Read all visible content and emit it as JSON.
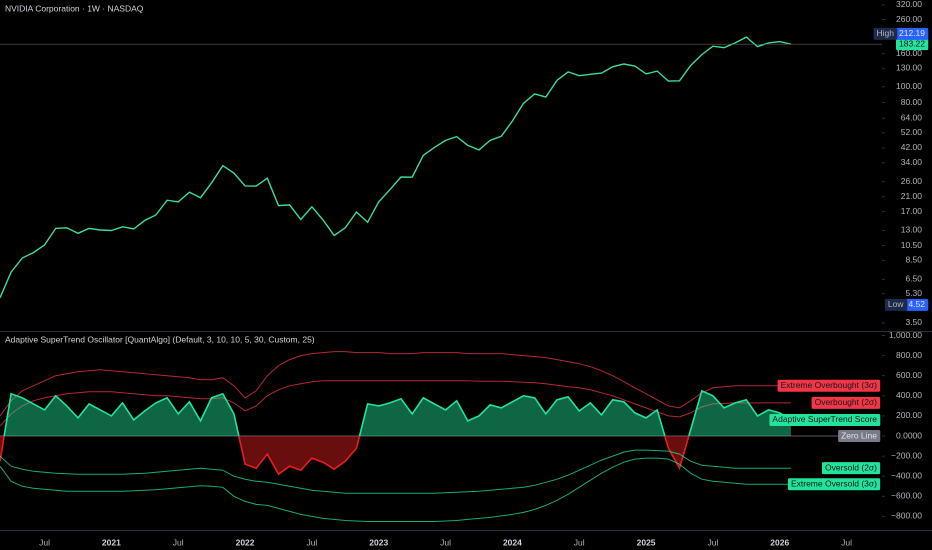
{
  "chart_data": [
    {
      "type": "line",
      "title": "NVIDIA Corporation · 1W · NASDAQ",
      "scale": "log",
      "color": "#3ddc97",
      "x": [
        "2020-03",
        "2020-04",
        "2020-05",
        "2020-06",
        "2020-07",
        "2020-08",
        "2020-09",
        "2020-10",
        "2020-11",
        "2020-12",
        "2021-01",
        "2021-02",
        "2021-03",
        "2021-04",
        "2021-05",
        "2021-06",
        "2021-07",
        "2021-08",
        "2021-09",
        "2021-10",
        "2021-11",
        "2021-12",
        "2022-01",
        "2022-02",
        "2022-03",
        "2022-04",
        "2022-05",
        "2022-06",
        "2022-07",
        "2022-08",
        "2022-09",
        "2022-10",
        "2022-11",
        "2022-12",
        "2023-01",
        "2023-02",
        "2023-03",
        "2023-04",
        "2023-05",
        "2023-06",
        "2023-07",
        "2023-08",
        "2023-09",
        "2023-10",
        "2023-11",
        "2023-12",
        "2024-01",
        "2024-02",
        "2024-03",
        "2024-04",
        "2024-05",
        "2024-06",
        "2024-07",
        "2024-08",
        "2024-09",
        "2024-10",
        "2024-11",
        "2024-12",
        "2025-01",
        "2025-02",
        "2025-03",
        "2025-04",
        "2025-05",
        "2025-06",
        "2025-07",
        "2025-08",
        "2025-09",
        "2025-10",
        "2025-11",
        "2025-12",
        "2026-01",
        "2026-02"
      ],
      "values": [
        5.0,
        7.2,
        8.8,
        9.5,
        10.6,
        13.4,
        13.5,
        12.5,
        13.4,
        13.1,
        13.0,
        13.7,
        13.3,
        15.0,
        16.2,
        20.0,
        19.5,
        22.4,
        20.7,
        25.6,
        32.6,
        29.4,
        24.5,
        24.4,
        27.3,
        18.5,
        18.7,
        15.2,
        18.2,
        15.1,
        12.1,
        13.5,
        16.9,
        14.6,
        19.5,
        23.2,
        27.8,
        27.7,
        37.8,
        42.3,
        46.7,
        49.3,
        43.5,
        40.8,
        46.7,
        49.5,
        61.5,
        79.1,
        90.4,
        86.4,
        109.6,
        123.5,
        117.0,
        119.4,
        121.4,
        132.8,
        138.3,
        134.3,
        120.1,
        124.9,
        108.4,
        108.9,
        135.1,
        158.0,
        177.9,
        174.2,
        186.6,
        202.5,
        177.0,
        186.5,
        190.0,
        183.22
      ],
      "xlim": [
        "2020-03",
        "2026-10"
      ],
      "ylim": [
        3.12,
        343
      ],
      "yticks": [
        {
          "value": 320,
          "label": "320.00"
        },
        {
          "value": 260,
          "label": "260.00"
        },
        {
          "value": 160,
          "label": "160.00"
        },
        {
          "value": 130,
          "label": "130.00"
        },
        {
          "value": 100,
          "label": "100.00"
        },
        {
          "value": 80,
          "label": "80.00"
        },
        {
          "value": 64,
          "label": "64.00"
        },
        {
          "value": 52,
          "label": "52.00"
        },
        {
          "value": 42,
          "label": "42.00"
        },
        {
          "value": 34,
          "label": "34.00"
        },
        {
          "value": 26,
          "label": "26.00"
        },
        {
          "value": 21,
          "label": "21.00"
        },
        {
          "value": 17,
          "label": "17.00"
        },
        {
          "value": 13,
          "label": "13.00"
        },
        {
          "value": 10.5,
          "label": "10.50"
        },
        {
          "value": 8.5,
          "label": "8.50"
        },
        {
          "value": 6.5,
          "label": "6.50"
        },
        {
          "value": 5.3,
          "label": "5.30"
        },
        {
          "value": 3.5,
          "label": "3.50"
        }
      ],
      "markers": [
        {
          "label": "High",
          "value": 212.19,
          "color": "#2962ff"
        },
        {
          "label": "Low",
          "value": 4.52,
          "color": "#2962ff"
        }
      ],
      "last": 183.22,
      "last_color": "#22e39a",
      "grid": false
    },
    {
      "type": "oscillator",
      "title": "Adaptive SuperTrend Oscillator [QuantAlgo] (Default, 3, 10, 10, 5, 30, Custom, 25)",
      "x": [
        "2020-03",
        "2020-04",
        "2020-05",
        "2020-06",
        "2020-07",
        "2020-08",
        "2020-09",
        "2020-10",
        "2020-11",
        "2020-12",
        "2021-01",
        "2021-02",
        "2021-03",
        "2021-04",
        "2021-05",
        "2021-06",
        "2021-07",
        "2021-08",
        "2021-09",
        "2021-10",
        "2021-11",
        "2021-12",
        "2022-01",
        "2022-02",
        "2022-03",
        "2022-04",
        "2022-05",
        "2022-06",
        "2022-07",
        "2022-08",
        "2022-09",
        "2022-10",
        "2022-11",
        "2022-12",
        "2023-01",
        "2023-02",
        "2023-03",
        "2023-04",
        "2023-05",
        "2023-06",
        "2023-07",
        "2023-08",
        "2023-09",
        "2023-10",
        "2023-11",
        "2023-12",
        "2024-01",
        "2024-02",
        "2024-03",
        "2024-04",
        "2024-05",
        "2024-06",
        "2024-07",
        "2024-08",
        "2024-09",
        "2024-10",
        "2024-11",
        "2024-12",
        "2025-01",
        "2025-02",
        "2025-03",
        "2025-04",
        "2025-05",
        "2025-06",
        "2025-07",
        "2025-08",
        "2025-09",
        "2025-10",
        "2025-11",
        "2025-12",
        "2026-01",
        "2026-02"
      ],
      "series": [
        {
          "name": "Extreme Overbought (3σ)",
          "color": "#f23645",
          "values": [
            200,
            350,
            450,
            500,
            550,
            600,
            620,
            640,
            650,
            660,
            650,
            640,
            630,
            620,
            610,
            600,
            590,
            580,
            560,
            560,
            580,
            500,
            380,
            450,
            600,
            700,
            760,
            800,
            820,
            830,
            840,
            840,
            830,
            830,
            830,
            820,
            820,
            820,
            830,
            830,
            830,
            830,
            820,
            820,
            820,
            820,
            810,
            800,
            790,
            780,
            760,
            740,
            720,
            690,
            650,
            600,
            540,
            480,
            420,
            360,
            300,
            280,
            350,
            430,
            480,
            490,
            500,
            500,
            500,
            500,
            500,
            500
          ]
        },
        {
          "name": "Overbought (2σ)",
          "color": "#f23645",
          "values": [
            100,
            220,
            300,
            350,
            380,
            400,
            420,
            430,
            440,
            440,
            440,
            430,
            420,
            410,
            400,
            400,
            390,
            380,
            370,
            370,
            380,
            330,
            250,
            300,
            400,
            460,
            500,
            520,
            540,
            550,
            550,
            550,
            550,
            550,
            550,
            550,
            550,
            550,
            550,
            550,
            550,
            550,
            550,
            545,
            545,
            545,
            540,
            535,
            530,
            520,
            505,
            490,
            480,
            460,
            430,
            400,
            360,
            320,
            280,
            240,
            200,
            190,
            230,
            290,
            320,
            325,
            330,
            330,
            330,
            330,
            330,
            330
          ]
        },
        {
          "name": "Adaptive SuperTrend Score",
          "color": "#22e39a",
          "negative_color": "#e81e1e",
          "fill": true,
          "values": [
            -250,
            420,
            380,
            320,
            260,
            400,
            300,
            180,
            320,
            260,
            200,
            330,
            160,
            250,
            330,
            380,
            220,
            340,
            150,
            380,
            420,
            220,
            -280,
            -320,
            -180,
            -380,
            -300,
            -340,
            -220,
            -260,
            -330,
            -250,
            -120,
            320,
            300,
            330,
            370,
            220,
            380,
            320,
            260,
            350,
            150,
            200,
            310,
            280,
            340,
            400,
            380,
            220,
            360,
            390,
            250,
            330,
            210,
            360,
            340,
            230,
            180,
            260,
            -120,
            -320,
            60,
            450,
            400,
            280,
            330,
            360,
            200,
            260,
            230,
            160
          ]
        },
        {
          "name": "Oversold (2σ)",
          "color": "#22e39a",
          "values": [
            -200,
            -300,
            -330,
            -350,
            -360,
            -370,
            -375,
            -380,
            -380,
            -380,
            -380,
            -380,
            -375,
            -370,
            -360,
            -350,
            -340,
            -330,
            -320,
            -330,
            -340,
            -400,
            -430,
            -450,
            -460,
            -480,
            -500,
            -520,
            -540,
            -550,
            -560,
            -570,
            -570,
            -570,
            -570,
            -570,
            -570,
            -570,
            -570,
            -570,
            -565,
            -560,
            -555,
            -550,
            -540,
            -530,
            -520,
            -510,
            -490,
            -460,
            -430,
            -390,
            -340,
            -290,
            -240,
            -200,
            -160,
            -140,
            -140,
            -145,
            -150,
            -180,
            -250,
            -290,
            -300,
            -310,
            -320,
            -320,
            -320,
            -320,
            -320,
            -320
          ]
        },
        {
          "name": "Extreme Oversold (3σ)",
          "color": "#22e39a",
          "values": [
            -300,
            -450,
            -500,
            -520,
            -530,
            -540,
            -550,
            -550,
            -550,
            -550,
            -550,
            -550,
            -545,
            -540,
            -535,
            -525,
            -515,
            -505,
            -495,
            -500,
            -510,
            -600,
            -650,
            -680,
            -690,
            -720,
            -750,
            -780,
            -800,
            -820,
            -830,
            -840,
            -845,
            -850,
            -850,
            -850,
            -850,
            -850,
            -850,
            -850,
            -845,
            -840,
            -830,
            -820,
            -810,
            -795,
            -780,
            -760,
            -730,
            -690,
            -640,
            -580,
            -510,
            -440,
            -370,
            -310,
            -260,
            -230,
            -220,
            -220,
            -230,
            -280,
            -370,
            -430,
            -450,
            -460,
            -470,
            -480,
            -480,
            -480,
            -480,
            -480
          ]
        }
      ],
      "hlines": [
        {
          "name": "Zero Line",
          "value": 0,
          "color": "#787b86"
        }
      ],
      "xlim": [
        "2020-03",
        "2026-10"
      ],
      "ylim": [
        -935,
        1025
      ],
      "yticks": [
        {
          "value": 1000,
          "label": "1,000.00"
        },
        {
          "value": 800,
          "label": "800.00"
        },
        {
          "value": 600,
          "label": "600.00"
        },
        {
          "value": 400,
          "label": "400.00"
        },
        {
          "value": 200,
          "label": "200.00"
        },
        {
          "value": 0,
          "label": "0.0000"
        },
        {
          "value": -200,
          "label": "−200.00"
        },
        {
          "value": -400,
          "label": "−400.00"
        },
        {
          "value": -600,
          "label": "−600.00"
        },
        {
          "value": -800,
          "label": "−800.00"
        }
      ],
      "xticks": [
        {
          "value": "2020-07",
          "label": "Jul"
        },
        {
          "value": "2021-01",
          "label": "2021"
        },
        {
          "value": "2021-07",
          "label": "Jul"
        },
        {
          "value": "2022-01",
          "label": "2022"
        },
        {
          "value": "2022-07",
          "label": "Jul"
        },
        {
          "value": "2023-01",
          "label": "2023"
        },
        {
          "value": "2023-07",
          "label": "Jul"
        },
        {
          "value": "2024-01",
          "label": "2024"
        },
        {
          "value": "2024-07",
          "label": "Jul"
        },
        {
          "value": "2025-01",
          "label": "2025"
        },
        {
          "value": "2025-07",
          "label": "Jul"
        },
        {
          "value": "2026-01",
          "label": "2026"
        },
        {
          "value": "2026-07",
          "label": "Jul"
        }
      ]
    }
  ]
}
